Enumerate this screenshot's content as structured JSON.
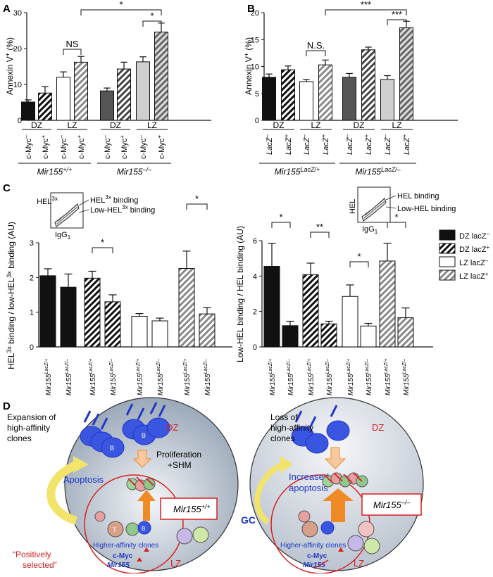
{
  "panels": {
    "A": {
      "letter": "A"
    },
    "B": {
      "letter": "B"
    },
    "C": {
      "letter": "C"
    },
    "D": {
      "letter": "D"
    }
  },
  "chart_data": [
    {
      "id": "A",
      "type": "bar",
      "ylabel": "Annexin V+ (%)",
      "ylabel_main": "Annexin V",
      "ylabel_sup": "+",
      "ylabel_unit": " (%)",
      "ylim": [
        0,
        30
      ],
      "yticks": [
        "0",
        "10",
        "20",
        "30"
      ],
      "categories": [
        "c-Myc–",
        "c-Myc+",
        "c-Myc–",
        "c-Myc+",
        "c-Myc–",
        "c-Myc+",
        "c-Myc–",
        "c-Myc+"
      ],
      "category_main": [
        "c-Myc",
        "c-Myc",
        "c-Myc",
        "c-Myc",
        "c-Myc",
        "c-Myc",
        "c-Myc",
        "c-Myc"
      ],
      "category_sup": [
        "–",
        "+",
        "–",
        "+",
        "–",
        "+",
        "–",
        "+"
      ],
      "zones": [
        "DZ",
        "LZ",
        "DZ",
        "LZ"
      ],
      "genotypes": [
        {
          "main": "Mir155",
          "sup": "+/+"
        },
        {
          "main": "Mir155",
          "sup": "–/–"
        }
      ],
      "values": [
        5.1,
        7.6,
        12.0,
        16.2,
        8.2,
        14.3,
        16.3,
        24.6
      ],
      "errors": [
        0.6,
        1.8,
        1.5,
        1.6,
        0.8,
        1.9,
        1.4,
        2.5
      ],
      "styles": [
        "solid-black",
        "hatch-black",
        "white",
        "hatch-gray",
        "solid-darkgray",
        "hatch-darkgray",
        "solid-lightgray",
        "hatch-lightgray"
      ],
      "significance": [
        "NS",
        "*",
        "*"
      ]
    },
    {
      "id": "B",
      "type": "bar",
      "ylabel": "Annexin V+ (%)",
      "ylabel_main": "Annexin V",
      "ylabel_sup": "+",
      "ylabel_unit": " (%)",
      "ylim": [
        0,
        20
      ],
      "yticks": [
        "0",
        "5",
        "10",
        "15",
        "20"
      ],
      "categories": [
        "LacZ–",
        "LacZ+",
        "LacZ–",
        "LacZ+",
        "LacZ–",
        "LacZ+",
        "LacZ–",
        "LacZ+"
      ],
      "category_main": [
        "LacZ",
        "LacZ",
        "LacZ",
        "LacZ",
        "LacZ",
        "LacZ",
        "LacZ",
        "LacZ"
      ],
      "category_sup": [
        "–",
        "+",
        "–",
        "+",
        "–",
        "+",
        "–",
        "+"
      ],
      "zones": [
        "DZ",
        "LZ",
        "DZ",
        "LZ"
      ],
      "genotypes": [
        {
          "main": "Mir155",
          "sup": "LacZ/+"
        },
        {
          "main": "Mir155",
          "sup": "LacZ/–"
        }
      ],
      "values": [
        8.0,
        9.4,
        7.2,
        10.3,
        8.0,
        13.1,
        7.6,
        17.2
      ],
      "errors": [
        0.6,
        0.7,
        0.4,
        0.9,
        0.7,
        0.5,
        0.7,
        1.2
      ],
      "styles": [
        "solid-black",
        "hatch-black",
        "white",
        "hatch-gray",
        "solid-darkgray",
        "hatch-darkgray",
        "solid-lightgray",
        "hatch-lightgray"
      ],
      "significance": [
        "N.S.",
        "***",
        "***"
      ]
    },
    {
      "id": "C-left",
      "type": "bar",
      "ylabel_parts": [
        "HEL",
        "3x",
        " binding / low-HEL",
        "3x",
        " binding (AU)"
      ],
      "ylim": [
        0,
        3
      ],
      "yticks": [
        "0",
        "1",
        "2",
        "3"
      ],
      "categories": [
        "Mir155LacZ/+",
        "Mir155LacZ/–",
        "Mir155LacZ/+",
        "Mir155LacZ/–",
        "Mir155LacZ/+",
        "Mir155LacZ/–",
        "Mir155LacZ/+",
        "Mir155LacZ/–"
      ],
      "category_main": [
        "Mir155",
        "Mir155",
        "Mir155",
        "Mir155",
        "Mir155",
        "Mir155",
        "Mir155",
        "Mir155"
      ],
      "category_sup": [
        "LacZ/+",
        "LacZ/–",
        "LacZ/+",
        "LacZ/–",
        "LacZ/+",
        "LacZ/–",
        "LacZ/+",
        "LacZ/–"
      ],
      "values": [
        2.05,
        1.72,
        1.98,
        1.3,
        0.88,
        0.75,
        2.26,
        0.95
      ],
      "errors": [
        0.2,
        0.38,
        0.2,
        0.2,
        0.08,
        0.08,
        0.5,
        0.18
      ],
      "styles": [
        "solid-black",
        "solid-black",
        "hatch-black",
        "hatch-black",
        "white",
        "white",
        "hatch-gray",
        "hatch-gray"
      ],
      "significance": [
        "*",
        "*"
      ],
      "inset": {
        "yaxis_main": "HEL",
        "yaxis_sup": "3x",
        "xaxis_main": "IgG",
        "xaxis_sub": "1",
        "gate1_main": "HEL",
        "gate1_sup": "3x",
        "gate1_suffix": " binding",
        "gate2_main": "Low-HEL",
        "gate2_sup": "3x",
        "gate2_suffix": " binding"
      }
    },
    {
      "id": "C-right",
      "type": "bar",
      "ylabel": "Low-HEL binding / HEL binding (AU)",
      "ylim": [
        0,
        6
      ],
      "yticks": [
        "0",
        "2",
        "4",
        "6"
      ],
      "categories": [
        "Mir155LacZ/+",
        "Mir155LacZ/–",
        "Mir155LacZ/+",
        "Mir155LacZ/–",
        "Mir155LacZ/+",
        "Mir155LacZ/–",
        "Mir155LacZ/+",
        "Mir155LacZ/–"
      ],
      "category_main": [
        "Mir155",
        "Mir155",
        "Mir155",
        "Mir155",
        "Mir155",
        "Mir155",
        "Mir155",
        "Mir155"
      ],
      "category_sup": [
        "LacZ/+",
        "LacZ/–",
        "LacZ/+",
        "LacZ/–",
        "LacZ/+",
        "LacZ/–",
        "LacZ/+",
        "LacZ/–"
      ],
      "values": [
        4.55,
        1.2,
        4.08,
        1.3,
        2.85,
        1.18,
        4.85,
        1.65
      ],
      "errors": [
        1.3,
        0.25,
        0.65,
        0.15,
        0.65,
        0.15,
        1.0,
        0.55
      ],
      "styles": [
        "solid-black",
        "solid-black",
        "hatch-black",
        "hatch-black",
        "white",
        "white",
        "hatch-gray",
        "hatch-gray"
      ],
      "significance": [
        "*",
        "**",
        "*",
        "*"
      ],
      "inset": {
        "yaxis": "HEL",
        "xaxis_main": "IgG",
        "xaxis_sub": "1",
        "gate1": "HEL binding",
        "gate2": "Low-HEL binding"
      },
      "legend": [
        {
          "main": "DZ lacZ",
          "sup": "–",
          "style": "solid-black"
        },
        {
          "main": "DZ lacZ",
          "sup": "+",
          "style": "hatch-black"
        },
        {
          "main": "LZ lacZ",
          "sup": "–",
          "style": "white"
        },
        {
          "main": "LZ lacZ",
          "sup": "+",
          "style": "hatch-gray"
        }
      ]
    }
  ],
  "diagram": {
    "left": {
      "title": [
        "Expansion of",
        "high-affinity",
        "clones"
      ],
      "dz": "DZ",
      "lz": "LZ",
      "prolif": [
        "Proliferation",
        "+SHM"
      ],
      "apoptosis": "Apoptosis",
      "box_main": "Mir155",
      "box_sup": "+/+",
      "clones": "Higher-affinity clones",
      "cmyc": "c-Myc",
      "mir": "Mir155",
      "selected": [
        "“Positively",
        "selected”"
      ],
      "cell_b": "B",
      "cell_t": "T"
    },
    "right": {
      "title": [
        "Loss of",
        "high-affinity",
        "clones"
      ],
      "dz": "DZ",
      "lz": "LZ",
      "apoptosis": [
        "Increased",
        "apoptosis"
      ],
      "box_main": "Mir155",
      "box_sup": "–/–",
      "clones": "Higher-affinity clones",
      "cmyc": "c-Myc",
      "mir": "Mir155"
    },
    "gc": "GC",
    "colors": {
      "blue": "#1f36c8",
      "red": "#d62020",
      "orange": "#f08a24",
      "yellow": "#f2e36a"
    }
  }
}
